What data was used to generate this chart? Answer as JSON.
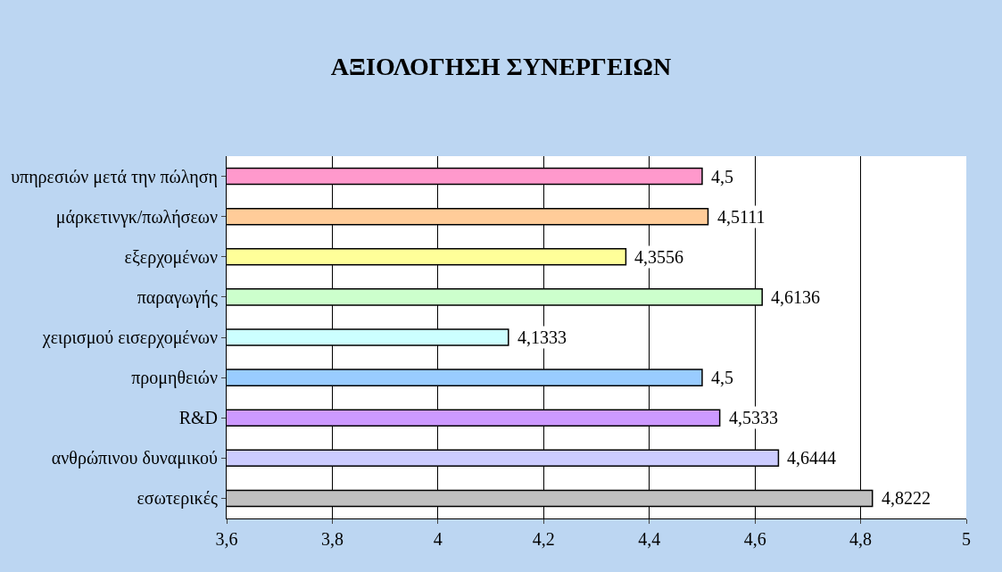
{
  "chart_data": {
    "type": "bar",
    "orientation": "horizontal",
    "title": "ΑΞΙΟΛΟΓΗΣΗ ΣΥΝΕΡΓΕΙΩΝ",
    "categories": [
      "υπηρεσιών μετά την πώληση",
      "μάρκετινγκ/πωλήσεων",
      "εξερχομένων",
      "παραγωγής",
      "χειρισμού εισερχομένων",
      "προμηθειών",
      "R&D",
      "ανθρώπινου δυναμικού",
      "εσωτερικές"
    ],
    "values": [
      4.5,
      4.5111,
      4.3556,
      4.6136,
      4.1333,
      4.5,
      4.5333,
      4.6444,
      4.8222
    ],
    "value_labels": [
      "4,5",
      "4,5111",
      "4,3556",
      "4,6136",
      "4,1333",
      "4,5",
      "4,5333",
      "4,6444",
      "4,8222"
    ],
    "colors": [
      "#ff99cc",
      "#ffcc99",
      "#ffff99",
      "#ccffcc",
      "#ccffff",
      "#99ccff",
      "#cc99ff",
      "#ccccff",
      "#c0c0c0"
    ],
    "xlim": [
      3.6,
      5
    ],
    "xticks": [
      {
        "value": 3.6,
        "label": "3,6"
      },
      {
        "value": 3.8,
        "label": "3,8"
      },
      4,
      {
        "value": 4.2,
        "label": "4,2"
      },
      {
        "value": 4.4,
        "label": "4,4"
      },
      {
        "value": 4.6,
        "label": "4,6"
      },
      {
        "value": 4.8,
        "label": "4,8"
      },
      5
    ],
    "grid": "x",
    "legend": false
  }
}
